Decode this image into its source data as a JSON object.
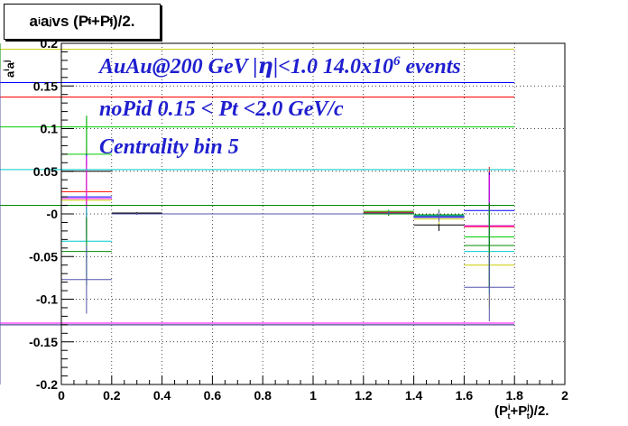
{
  "title": {
    "base": "a",
    "sup1": "i",
    "mid": "a",
    "sup2": "j",
    "vs": " vs (P",
    "sup3": "i",
    "sub3": "t",
    "plus": "+P",
    "sup4": "j",
    "sub4": "t",
    "end": ")/2."
  },
  "annotations": {
    "line1_a": "AuAu@200 GeV |",
    "line1_eta": "η",
    "line1_b": "|<1.0 14.0x10",
    "line1_exp": "6",
    "line1_c": " events",
    "line2": "noPid 0.15 < Pt <2.0 GeV/c",
    "line3": "Centrality bin 5"
  },
  "xlabel": {
    "a": "(P",
    "sup1": "i",
    "sub1": "t",
    "b": "+P",
    "sup2": "j",
    "sub2": "t",
    "c": ")/2."
  },
  "ylabel": {
    "a": "a",
    "sup1": "i",
    "b": "a",
    "sup2": "j"
  },
  "colors": {
    "annotation": "#1f1fcf",
    "grid": "#000000"
  },
  "chart_data": {
    "type": "scatter",
    "xlim": [
      0,
      2
    ],
    "ylim": [
      -0.2,
      0.2
    ],
    "grid": true,
    "x_ticks": [
      "0",
      "0.2",
      "0.4",
      "0.6",
      "0.8",
      "1",
      "1.2",
      "1.4",
      "1.6",
      "1.8",
      "2"
    ],
    "y_ticks": [
      "-0.2",
      "-0.15",
      "-0.1",
      "-0.05",
      "-0",
      "0.05",
      "0.1",
      "0.15",
      "0.2"
    ],
    "bin_edges": [
      0,
      0.2,
      0.4,
      1.2,
      1.4,
      1.6,
      1.8
    ],
    "series": [
      {
        "color": "#000000",
        "values": [
          0.05,
          0.001,
          0.0,
          0.001,
          -0.013,
          -0.014,
          -0.13
        ],
        "errors": [
          0.065,
          0.001,
          0.0005,
          0.002,
          0.007,
          0.063,
          0.3
        ]
      },
      {
        "color": "#ff0000",
        "values": [
          0.026,
          0.0,
          0.0,
          0.002,
          -0.003,
          -0.015,
          0.137
        ],
        "errors": [
          0.05,
          0.001,
          0.0005,
          0.002,
          0.006,
          0.07,
          0.3
        ]
      },
      {
        "color": "#00cc00",
        "values": [
          0.07,
          0.0,
          0.0,
          0.003,
          -0.002,
          -0.027,
          0.102
        ],
        "errors": [
          0.045,
          0.001,
          0.0005,
          0.002,
          0.006,
          0.06,
          0.3
        ]
      },
      {
        "color": "#0000ff",
        "values": [
          0.02,
          0.0,
          0.0,
          0.001,
          -0.004,
          0.004,
          0.154
        ],
        "errors": [
          0.05,
          0.001,
          0.0005,
          0.002,
          0.006,
          0.045,
          0.3
        ]
      },
      {
        "color": "#cccc00",
        "values": [
          0.016,
          0.0,
          0.0,
          0.0,
          -0.006,
          -0.06,
          0.193
        ],
        "errors": [
          0.04,
          0.001,
          0.0005,
          0.002,
          0.006,
          0.05,
          0.3
        ]
      },
      {
        "color": "#ff00ff",
        "values": [
          0.018,
          0.0,
          0.0,
          0.001,
          -0.002,
          -0.014,
          -0.128
        ],
        "errors": [
          0.05,
          0.001,
          0.0005,
          0.002,
          0.006,
          0.06,
          0.3
        ]
      },
      {
        "color": "#00cccc",
        "values": [
          -0.032,
          0.0,
          0.0,
          0.0,
          -0.002,
          -0.044,
          0.052
        ],
        "errors": [
          0.04,
          0.001,
          0.0005,
          0.002,
          0.006,
          0.05,
          0.3
        ]
      },
      {
        "color": "#008800",
        "values": [
          -0.044,
          0.0,
          0.0,
          0.0,
          -0.001,
          -0.037,
          0.01
        ],
        "errors": [
          0.04,
          0.001,
          0.0005,
          0.002,
          0.006,
          0.05,
          0.3
        ]
      },
      {
        "color": "#5555aa",
        "values": [
          -0.077,
          0.0,
          0.0,
          0.001,
          -0.003,
          -0.086,
          -0.13
        ],
        "errors": [
          0.04,
          0.001,
          0.0005,
          0.002,
          0.006,
          0.04,
          0.3
        ]
      }
    ]
  }
}
